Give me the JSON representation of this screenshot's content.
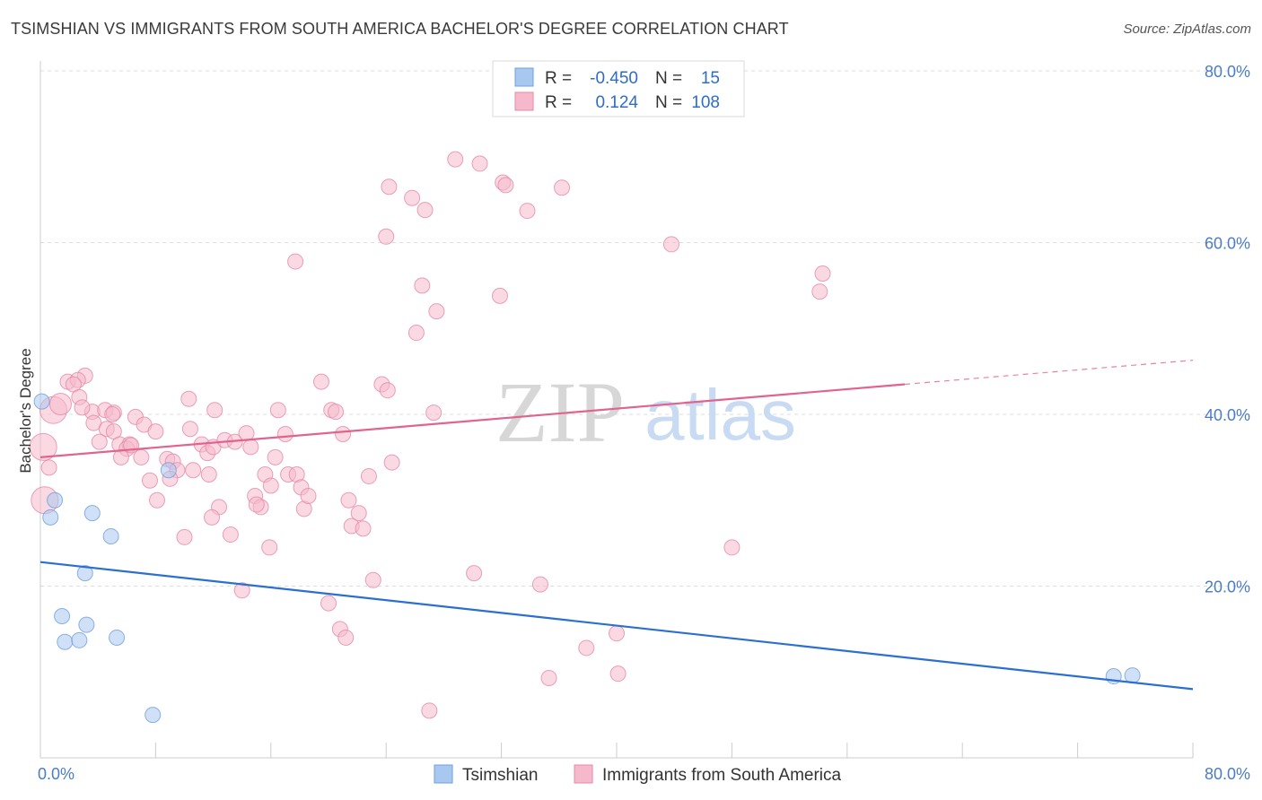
{
  "title": "TSIMSHIAN VS IMMIGRANTS FROM SOUTH AMERICA BACHELOR'S DEGREE CORRELATION CHART",
  "source": "Source: ZipAtlas.com",
  "watermark": {
    "zip": "ZIP",
    "atlas": "atlas"
  },
  "colors": {
    "blue_fill": "#a9c8f0",
    "blue_stroke": "#6f9fdc",
    "blue_line": "#2b6fd1",
    "pink_fill": "#f6b9cc",
    "pink_stroke": "#e58aa7",
    "pink_line": "#e0648e",
    "tick": "#4a7cc9",
    "grid": "#dddddd"
  },
  "legend": {
    "rows": [
      {
        "r_label": "R =",
        "r_value": "-0.450",
        "n_label": "N =",
        "n_value": "15",
        "color": "blue"
      },
      {
        "r_label": "R =",
        "r_value": "0.124",
        "n_label": "N =",
        "n_value": "108",
        "color": "pink"
      }
    ]
  },
  "chart_data": {
    "type": "scatter",
    "title": "TSIMSHIAN VS IMMIGRANTS FROM SOUTH AMERICA BACHELOR'S DEGREE CORRELATION CHART",
    "xlabel": "",
    "ylabel": "Bachelor's Degree",
    "xlim": [
      0,
      80
    ],
    "ylim": [
      0,
      80
    ],
    "x_ticks": [
      "0.0%",
      "80.0%"
    ],
    "y_ticks": [
      {
        "value": 20,
        "label": "20.0%"
      },
      {
        "value": 40,
        "label": "40.0%"
      },
      {
        "value": 60,
        "label": "60.0%"
      },
      {
        "value": 80,
        "label": "80.0%"
      }
    ],
    "grid": true,
    "legend_position": "top-center",
    "series": [
      {
        "name": "Tsimshian",
        "color": "blue",
        "points": [
          [
            0.1,
            41.5
          ],
          [
            1.0,
            30.0
          ],
          [
            0.7,
            28.0
          ],
          [
            3.6,
            28.5
          ],
          [
            4.9,
            25.8
          ],
          [
            3.1,
            21.5
          ],
          [
            1.5,
            16.5
          ],
          [
            3.2,
            15.5
          ],
          [
            1.7,
            13.5
          ],
          [
            2.7,
            13.7
          ],
          [
            5.3,
            14.0
          ],
          [
            8.9,
            33.5
          ],
          [
            7.8,
            5.0
          ],
          [
            74.5,
            9.5
          ],
          [
            75.8,
            9.6
          ]
        ],
        "trend": {
          "x": [
            0,
            80
          ],
          "y": [
            22.8,
            8.0
          ]
        }
      },
      {
        "name": "Immigrants from South America",
        "color": "pink",
        "points": [
          [
            0.2,
            36.2
          ],
          [
            0.9,
            40.5
          ],
          [
            1.4,
            41.2
          ],
          [
            0.3,
            30.0
          ],
          [
            1.9,
            43.8
          ],
          [
            3.1,
            44.5
          ],
          [
            2.6,
            44.0
          ],
          [
            2.3,
            43.5
          ],
          [
            2.7,
            42.0
          ],
          [
            3.6,
            40.3
          ],
          [
            2.9,
            40.8
          ],
          [
            4.5,
            40.5
          ],
          [
            5.1,
            40.2
          ],
          [
            6.6,
            39.7
          ],
          [
            3.7,
            39.0
          ],
          [
            7.2,
            38.8
          ],
          [
            4.6,
            38.3
          ],
          [
            5.1,
            38.0
          ],
          [
            8.0,
            38.0
          ],
          [
            4.1,
            36.8
          ],
          [
            5.5,
            36.5
          ],
          [
            6.2,
            36.5
          ],
          [
            6.0,
            36.0
          ],
          [
            5.6,
            35.0
          ],
          [
            7.0,
            35.0
          ],
          [
            8.8,
            34.8
          ],
          [
            9.2,
            34.5
          ],
          [
            9.5,
            33.5
          ],
          [
            7.6,
            32.3
          ],
          [
            8.1,
            30.0
          ],
          [
            10.3,
            41.8
          ],
          [
            10.4,
            38.3
          ],
          [
            11.2,
            36.5
          ],
          [
            11.6,
            35.5
          ],
          [
            12.0,
            36.2
          ],
          [
            10.6,
            33.5
          ],
          [
            11.7,
            33.0
          ],
          [
            12.1,
            40.5
          ],
          [
            12.8,
            37.0
          ],
          [
            13.5,
            36.8
          ],
          [
            12.4,
            29.2
          ],
          [
            11.9,
            28.0
          ],
          [
            10.0,
            25.7
          ],
          [
            13.2,
            26.0
          ],
          [
            14.3,
            37.8
          ],
          [
            14.6,
            36.2
          ],
          [
            14.9,
            30.5
          ],
          [
            15.3,
            29.2
          ],
          [
            15.6,
            33.0
          ],
          [
            15.0,
            29.5
          ],
          [
            16.0,
            31.7
          ],
          [
            16.3,
            35.0
          ],
          [
            17.0,
            37.7
          ],
          [
            17.2,
            33.0
          ],
          [
            17.8,
            33.0
          ],
          [
            18.1,
            31.5
          ],
          [
            18.3,
            29.0
          ],
          [
            18.6,
            30.5
          ],
          [
            16.5,
            40.5
          ],
          [
            15.9,
            24.5
          ],
          [
            14.0,
            19.5
          ],
          [
            17.7,
            57.8
          ],
          [
            19.5,
            43.8
          ],
          [
            20.2,
            40.5
          ],
          [
            20.5,
            40.3
          ],
          [
            21.0,
            37.7
          ],
          [
            21.4,
            30.0
          ],
          [
            21.6,
            27.0
          ],
          [
            22.1,
            28.5
          ],
          [
            22.4,
            26.7
          ],
          [
            20.0,
            18.0
          ],
          [
            20.8,
            15.0
          ],
          [
            21.2,
            14.0
          ],
          [
            23.7,
            43.5
          ],
          [
            24.1,
            42.8
          ],
          [
            22.8,
            32.8
          ],
          [
            24.4,
            34.4
          ],
          [
            23.1,
            20.7
          ],
          [
            24.2,
            66.5
          ],
          [
            24.0,
            60.7
          ],
          [
            25.8,
            65.2
          ],
          [
            26.7,
            63.8
          ],
          [
            26.5,
            55.0
          ],
          [
            27.5,
            52.0
          ],
          [
            26.1,
            49.5
          ],
          [
            27.3,
            40.2
          ],
          [
            28.8,
            69.7
          ],
          [
            30.5,
            69.2
          ],
          [
            30.1,
            21.5
          ],
          [
            27.0,
            5.5
          ],
          [
            32.1,
            67.0
          ],
          [
            32.3,
            66.7
          ],
          [
            33.8,
            63.7
          ],
          [
            31.9,
            53.8
          ],
          [
            34.7,
            20.2
          ],
          [
            35.3,
            9.3
          ],
          [
            36.2,
            66.4
          ],
          [
            37.9,
            12.8
          ],
          [
            40.0,
            14.5
          ],
          [
            40.1,
            9.8
          ],
          [
            43.8,
            59.8
          ],
          [
            48.0,
            24.5
          ],
          [
            54.1,
            54.3
          ],
          [
            54.3,
            56.4
          ],
          [
            0.6,
            33.8
          ],
          [
            5.0,
            40.0
          ],
          [
            6.3,
            36.4
          ],
          [
            9.0,
            32.5
          ]
        ],
        "trend": {
          "x": [
            0,
            60,
            80
          ],
          "y": [
            35.0,
            43.5,
            46.3
          ]
        }
      }
    ]
  },
  "bottom_legend": [
    {
      "label": "Tsimshian",
      "color": "blue"
    },
    {
      "label": "Immigrants from South America",
      "color": "pink"
    }
  ]
}
